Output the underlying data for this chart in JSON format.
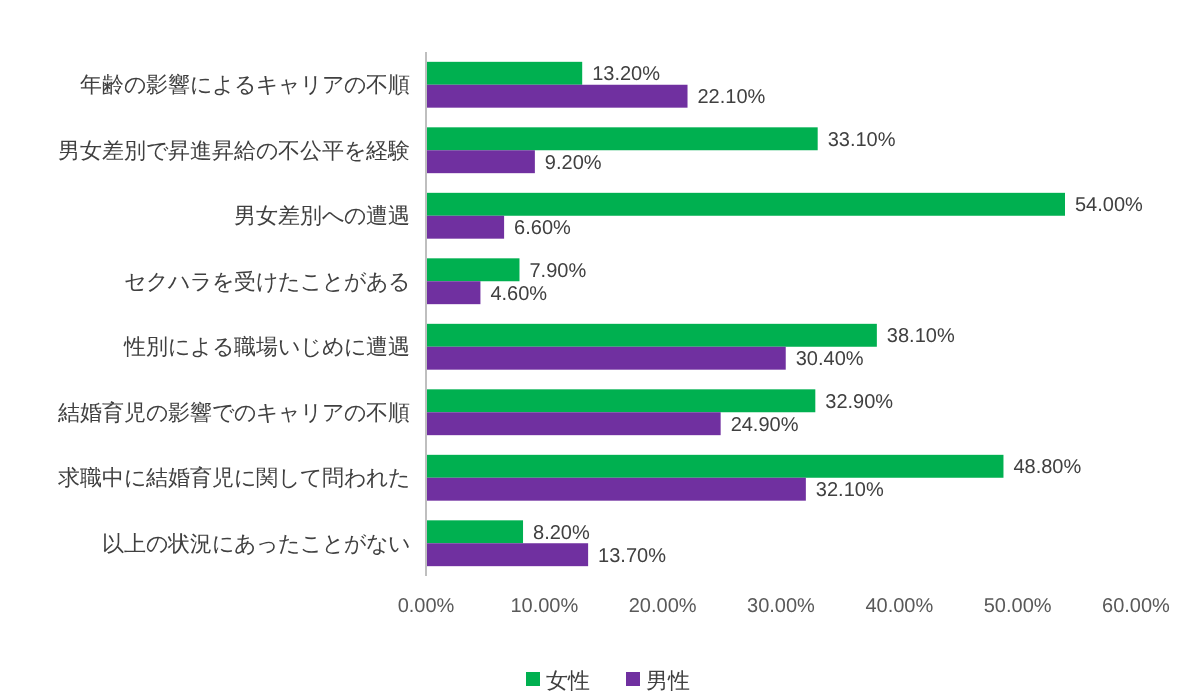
{
  "chart_data": {
    "type": "bar",
    "orientation": "horizontal",
    "categories": [
      "年齢の影響によるキャリアの不順",
      "男女差別で昇進昇給の不公平を経験",
      "男女差別への遭遇",
      "セクハラを受けたことがある",
      "性別による職場いじめに遭遇",
      "結婚育児の影響でのキャリアの不順",
      "求職中に結婚育児に関して問われた",
      "以上の状況にあったことがない"
    ],
    "series": [
      {
        "name": "女性",
        "color": "#00b050",
        "values": [
          13.2,
          33.1,
          54.0,
          7.9,
          38.1,
          32.9,
          48.8,
          8.2
        ],
        "value_labels": [
          "13.20%",
          "33.10%",
          "54.00%",
          "7.90%",
          "38.10%",
          "32.90%",
          "48.80%",
          "8.20%"
        ]
      },
      {
        "name": "男性",
        "color": "#7030a0",
        "values": [
          22.1,
          9.2,
          6.6,
          4.6,
          30.4,
          24.9,
          32.1,
          13.7
        ],
        "value_labels": [
          "22.10%",
          "9.20%",
          "6.60%",
          "4.60%",
          "30.40%",
          "24.90%",
          "32.10%",
          "13.70%"
        ]
      }
    ],
    "xlim": [
      0,
      60
    ],
    "xticks": [
      {
        "value": 0,
        "label": "0.00%"
      },
      {
        "value": 10,
        "label": "10.00%"
      },
      {
        "value": 20,
        "label": "20.00%"
      },
      {
        "value": 30,
        "label": "30.00%"
      },
      {
        "value": 40,
        "label": "40.00%"
      },
      {
        "value": 50,
        "label": "50.00%"
      },
      {
        "value": 60,
        "label": "60.00%"
      }
    ],
    "grid": false,
    "legend": "bottom"
  }
}
